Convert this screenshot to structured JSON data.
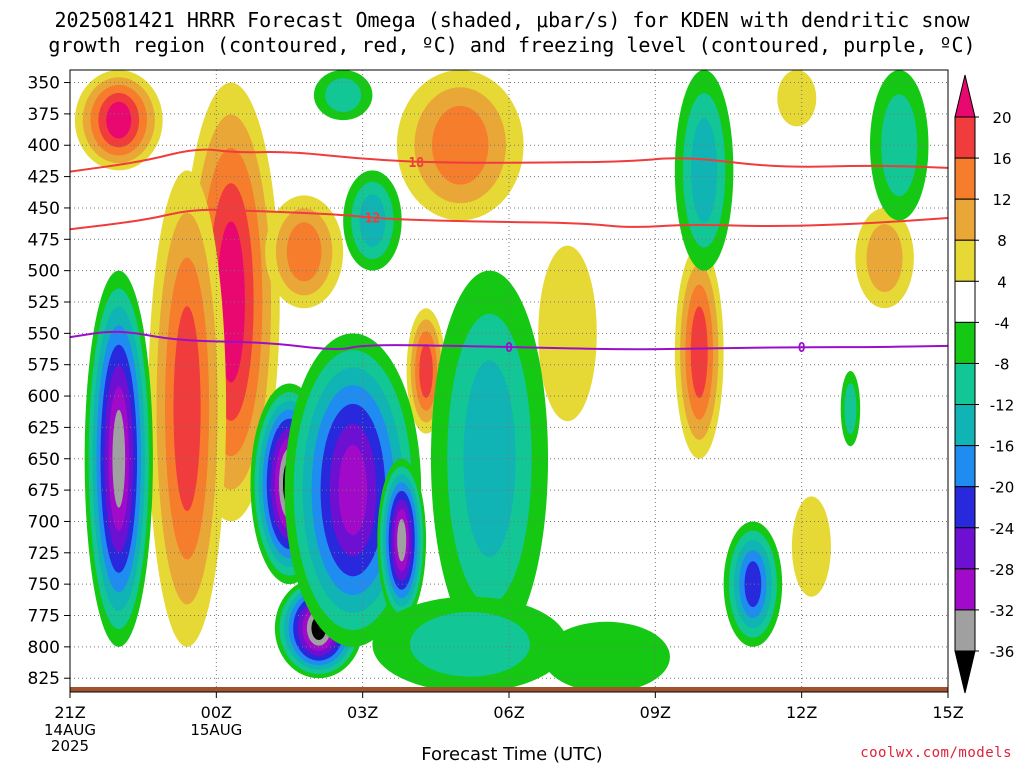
{
  "title": {
    "line1": "2025081421 HRRR Forecast Omega (shaded, μbar/s) for KDEN with dendritic snow",
    "line2": "growth region (contoured, red, ºC) and freezing level (contoured, purple, ºC)"
  },
  "x_axis_label": "Forecast Time (UTC)",
  "credit": "coolwx.com/models",
  "chart_data": {
    "type": "heatmap",
    "xlabel": "Forecast Time (UTC)",
    "ylabel": "",
    "x_ticks": [
      {
        "label": "21Z",
        "sub": [
          "14AUG",
          "2025"
        ],
        "hour": 0
      },
      {
        "label": "00Z",
        "sub": [
          "15AUG"
        ],
        "hour": 3
      },
      {
        "label": "03Z",
        "sub": [],
        "hour": 6
      },
      {
        "label": "06Z",
        "sub": [],
        "hour": 9
      },
      {
        "label": "09Z",
        "sub": [],
        "hour": 12
      },
      {
        "label": "12Z",
        "sub": [],
        "hour": 15
      },
      {
        "label": "15Z",
        "sub": [],
        "hour": 18
      }
    ],
    "xlim_hours": [
      0,
      18
    ],
    "y_ticks": [
      "350",
      "375",
      "400",
      "425",
      "450",
      "475",
      "500",
      "525",
      "550",
      "575",
      "600",
      "625",
      "650",
      "675",
      "700",
      "725",
      "750",
      "775",
      "800",
      "825"
    ],
    "ylim_mb": [
      340,
      836
    ],
    "colorbar": {
      "labels": [
        "20",
        "16",
        "12",
        "8",
        "4",
        "-4",
        "-8",
        "-12",
        "-16",
        "-20",
        "-24",
        "-28",
        "-32",
        "-36"
      ],
      "colors": [
        "#e8086f",
        "#f03c3c",
        "#f57d2b",
        "#e9a737",
        "#e6d935",
        "#ffffff",
        "#14c814",
        "#12c696",
        "#10b4b4",
        "#1e8cf0",
        "#2828dc",
        "#6e10d2",
        "#a00ac8",
        "#a0a0a0",
        "#000000"
      ]
    },
    "contours": [
      {
        "label": "-18",
        "color": "#f03c3c",
        "points": [
          [
            0,
            421
          ],
          [
            1.5,
            413
          ],
          [
            2.6,
            402
          ],
          [
            3.4,
            406
          ],
          [
            4.5,
            405
          ],
          [
            6,
            411
          ],
          [
            7.5,
            414
          ],
          [
            9.5,
            414
          ],
          [
            11.5,
            413
          ],
          [
            12.6,
            409
          ],
          [
            14.5,
            418
          ],
          [
            16.5,
            416
          ],
          [
            18,
            418
          ]
        ]
      },
      {
        "label": "-12",
        "color": "#f03c3c",
        "points": [
          [
            0,
            467
          ],
          [
            1.5,
            460
          ],
          [
            2.5,
            451
          ],
          [
            3.5,
            452
          ],
          [
            5.5,
            455
          ],
          [
            6.5,
            459
          ],
          [
            8.5,
            461
          ],
          [
            10.5,
            462
          ],
          [
            11.5,
            466
          ],
          [
            12.7,
            463
          ],
          [
            14.5,
            465
          ],
          [
            16.5,
            462
          ],
          [
            18,
            458
          ]
        ]
      },
      {
        "label": "0",
        "color": "#9a10c8",
        "points": [
          [
            0,
            553
          ],
          [
            1.0,
            547
          ],
          [
            2.2,
            556
          ],
          [
            4.0,
            557
          ],
          [
            5.5,
            564
          ],
          [
            6,
            559
          ],
          [
            8,
            560
          ],
          [
            9,
            561
          ],
          [
            11.5,
            563
          ],
          [
            13.0,
            562
          ],
          [
            15,
            561
          ],
          [
            16.5,
            561
          ],
          [
            18,
            560
          ]
        ]
      }
    ],
    "contour_label_positions": [
      {
        "label": "-18",
        "hour": 7.1
      },
      {
        "label": "-12",
        "hour": 6.2
      },
      {
        "label": "0",
        "hour": 9.0
      },
      {
        "label": "0",
        "hour": 15.0
      }
    ],
    "omega_features": [
      {
        "sign": "up",
        "peak": 20,
        "hour": 1.0,
        "p_top": 340,
        "p_bot": 420,
        "hw": 0.9
      },
      {
        "sign": "up",
        "peak": 22,
        "hour": 3.3,
        "p_top": 350,
        "p_bot": 700,
        "hw": 1.0
      },
      {
        "sign": "up",
        "peak": 18,
        "hour": 2.4,
        "p_top": 420,
        "p_bot": 800,
        "hw": 0.8
      },
      {
        "sign": "up",
        "peak": 15,
        "hour": 4.8,
        "p_top": 440,
        "p_bot": 530,
        "hw": 0.8
      },
      {
        "sign": "up",
        "peak": 14,
        "hour": 8.0,
        "p_top": 340,
        "p_bot": 460,
        "hw": 1.3
      },
      {
        "sign": "up",
        "peak": 16,
        "hour": 7.3,
        "p_top": 530,
        "p_bot": 630,
        "hw": 0.4
      },
      {
        "sign": "up",
        "peak": 17,
        "hour": 12.9,
        "p_top": 480,
        "p_bot": 650,
        "hw": 0.5
      },
      {
        "sign": "up",
        "peak": 10,
        "hour": 16.7,
        "p_top": 450,
        "p_bot": 530,
        "hw": 0.6
      },
      {
        "sign": "up",
        "peak": 7,
        "hour": 10.2,
        "p_top": 480,
        "p_bot": 620,
        "hw": 0.6
      },
      {
        "sign": "up",
        "peak": 6,
        "hour": 15.2,
        "p_top": 680,
        "p_bot": 760,
        "hw": 0.4
      },
      {
        "sign": "up",
        "peak": 5,
        "hour": 14.9,
        "p_top": 340,
        "p_bot": 385,
        "hw": 0.4
      },
      {
        "sign": "down",
        "peak": -34,
        "hour": 1.0,
        "p_top": 500,
        "p_bot": 800,
        "hw": 0.7
      },
      {
        "sign": "down",
        "peak": -40,
        "hour": 4.5,
        "p_top": 590,
        "p_bot": 750,
        "hw": 0.8
      },
      {
        "sign": "down",
        "peak": -38,
        "hour": 5.1,
        "p_top": 745,
        "p_bot": 825,
        "hw": 0.9
      },
      {
        "sign": "down",
        "peak": -30,
        "hour": 5.8,
        "p_top": 550,
        "p_bot": 800,
        "hw": 1.4
      },
      {
        "sign": "down",
        "peak": -32,
        "hour": 6.8,
        "p_top": 650,
        "p_bot": 780,
        "hw": 0.5
      },
      {
        "sign": "down",
        "peak": -14,
        "hour": 8.6,
        "p_top": 500,
        "p_bot": 800,
        "hw": 1.2
      },
      {
        "sign": "down",
        "peak": -10,
        "hour": 8.2,
        "p_top": 760,
        "p_bot": 836,
        "hw": 2.0
      },
      {
        "sign": "down",
        "peak": -12,
        "hour": 6.2,
        "p_top": 420,
        "p_bot": 500,
        "hw": 0.6
      },
      {
        "sign": "down",
        "peak": -10,
        "hour": 5.6,
        "p_top": 340,
        "p_bot": 380,
        "hw": 0.6
      },
      {
        "sign": "down",
        "peak": -14,
        "hour": 13.0,
        "p_top": 340,
        "p_bot": 500,
        "hw": 0.6
      },
      {
        "sign": "down",
        "peak": -9,
        "hour": 17.0,
        "p_top": 340,
        "p_bot": 460,
        "hw": 0.6
      },
      {
        "sign": "down",
        "peak": -20,
        "hour": 14.0,
        "p_top": 700,
        "p_bot": 800,
        "hw": 0.6
      },
      {
        "sign": "down",
        "peak": -7,
        "hour": 11.0,
        "p_top": 780,
        "p_bot": 836,
        "hw": 1.3
      },
      {
        "sign": "down",
        "peak": -8,
        "hour": 16.0,
        "p_top": 580,
        "p_bot": 640,
        "hw": 0.2
      }
    ],
    "ground_color": "#a0522d"
  }
}
